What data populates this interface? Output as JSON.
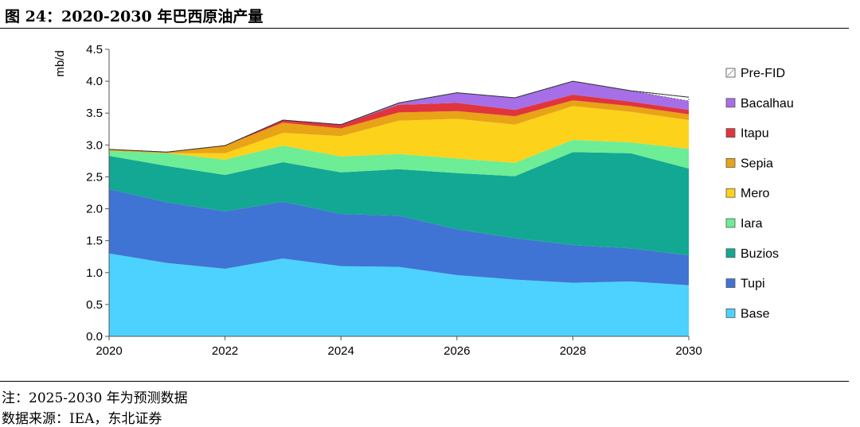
{
  "figure": {
    "title": "图 24：2020-2030 年巴西原油产量",
    "note": "注：2025-2030 年为预测数据",
    "source": "数据来源：IEA，东北证券"
  },
  "chart_data": {
    "type": "area",
    "stacked": true,
    "title": "",
    "xlabel": "",
    "ylabel": "mb/d",
    "x": [
      2020,
      2021,
      2022,
      2023,
      2024,
      2025,
      2026,
      2027,
      2028,
      2029,
      2030
    ],
    "x_ticks": [
      "2020",
      "2022",
      "2024",
      "2026",
      "2028",
      "2030"
    ],
    "y_ticks": [
      "0.0",
      "0.5",
      "1.0",
      "1.5",
      "2.0",
      "2.5",
      "3.0",
      "3.5",
      "4.0",
      "4.5"
    ],
    "ylim": [
      0,
      4.5
    ],
    "xlim": [
      2020,
      2030
    ],
    "grid": false,
    "legend_position": "right",
    "series": [
      {
        "name": "Base",
        "color": "#4DD2FF",
        "values": [
          1.3,
          1.15,
          1.06,
          1.22,
          1.1,
          1.09,
          0.96,
          0.89,
          0.84,
          0.86,
          0.8
        ]
      },
      {
        "name": "Tupi",
        "color": "#3F74D4",
        "values": [
          1.01,
          0.95,
          0.9,
          0.89,
          0.82,
          0.8,
          0.72,
          0.65,
          0.59,
          0.52,
          0.47
        ]
      },
      {
        "name": "Buzios",
        "color": "#12A893",
        "values": [
          0.52,
          0.57,
          0.57,
          0.62,
          0.65,
          0.73,
          0.88,
          0.97,
          1.46,
          1.49,
          1.36
        ]
      },
      {
        "name": "Iara",
        "color": "#6DED95",
        "values": [
          0.08,
          0.2,
          0.24,
          0.26,
          0.25,
          0.24,
          0.23,
          0.21,
          0.19,
          0.17,
          0.31
        ]
      },
      {
        "name": "Mero",
        "color": "#FDD21B",
        "values": [
          0.0,
          0.0,
          0.1,
          0.2,
          0.32,
          0.52,
          0.62,
          0.6,
          0.53,
          0.48,
          0.45
        ]
      },
      {
        "name": "Sepia",
        "color": "#E8A316",
        "values": [
          0.02,
          0.02,
          0.12,
          0.16,
          0.12,
          0.13,
          0.12,
          0.13,
          0.09,
          0.09,
          0.09
        ]
      },
      {
        "name": "Itapu",
        "color": "#E0353D",
        "values": [
          0.0,
          0.0,
          0.0,
          0.04,
          0.06,
          0.12,
          0.13,
          0.1,
          0.09,
          0.07,
          0.07
        ]
      },
      {
        "name": "Bacalhau",
        "color": "#A66FE8",
        "values": [
          0.0,
          0.0,
          0.0,
          0.0,
          0.0,
          0.03,
          0.16,
          0.19,
          0.21,
          0.17,
          0.14
        ]
      },
      {
        "name": "Pre-FID",
        "color": "#FFFFFF",
        "values": [
          0.0,
          0.0,
          0.0,
          0.0,
          0.0,
          0.0,
          0.0,
          0.0,
          0.0,
          0.0,
          0.06
        ]
      }
    ]
  }
}
